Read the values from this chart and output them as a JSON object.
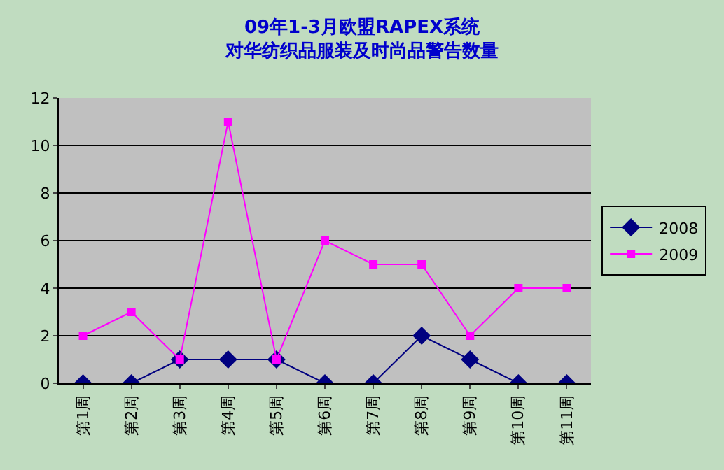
{
  "chart_data": {
    "type": "line",
    "title": "09年1-3月欧盟RAPEX系统",
    "subtitle": "对华纺织品服装及时尚品警告数量",
    "categories": [
      "第1周",
      "第2周",
      "第3周",
      "第4周",
      "第5周",
      "第6周",
      "第7周",
      "第8周",
      "第9周",
      "第10周",
      "第11周"
    ],
    "series": [
      {
        "name": "2008",
        "color": "#000080",
        "marker": "diamond",
        "values": [
          0,
          0,
          1,
          1,
          1,
          0,
          0,
          2,
          1,
          0,
          0
        ]
      },
      {
        "name": "2009",
        "color": "#ff00ff",
        "marker": "square",
        "values": [
          2,
          3,
          1,
          11,
          1,
          6,
          5,
          5,
          2,
          4,
          4
        ]
      }
    ],
    "ylim": [
      0,
      12
    ],
    "yticks": [
      0,
      2,
      4,
      6,
      8,
      10,
      12
    ],
    "grid": "y",
    "legend": "right"
  }
}
